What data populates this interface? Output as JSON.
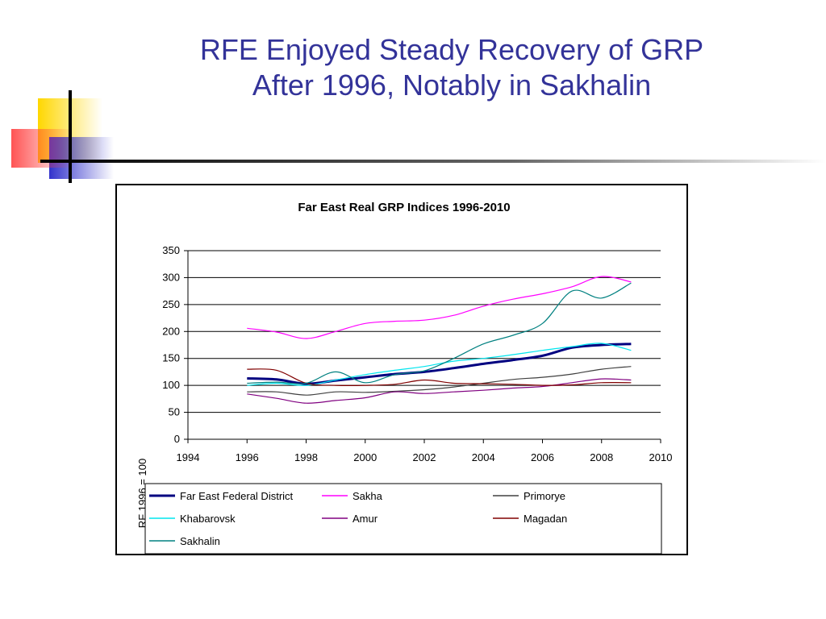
{
  "slide": {
    "title_line1": "RFE Enjoyed Steady Recovery of GRP",
    "title_line2": "After 1996, Notably in Sakhalin"
  },
  "colors": {
    "title": "#333399",
    "deco_yellow": "#FFD700",
    "deco_red": "#FF5050",
    "deco_blue": "#3333CC",
    "deco_line": "#000000"
  },
  "chart_data": {
    "type": "line",
    "title": "Far East Real GRP Indices 1996-2010",
    "xlabel": "",
    "ylabel": "RF 1996 = 100",
    "xlim": [
      1994,
      2010
    ],
    "ylim": [
      0,
      350
    ],
    "x_ticks": [
      "1994",
      "1996",
      "1998",
      "2000",
      "2002",
      "2004",
      "2006",
      "2008",
      "2010"
    ],
    "y_ticks": [
      "0",
      "50",
      "100",
      "150",
      "200",
      "250",
      "300",
      "350"
    ],
    "grid": "horizontal",
    "legend_position": "bottom",
    "series": [
      {
        "name": "Far East Federal District",
        "color": "#000080",
        "thick": true,
        "x": [
          1996,
          1997,
          1998,
          1999,
          2000,
          2001,
          2002,
          2003,
          2004,
          2005,
          2006,
          2007,
          2008,
          2009
        ],
        "y": [
          113,
          111,
          103,
          109,
          115,
          121,
          125,
          132,
          140,
          147,
          155,
          170,
          175,
          177
        ]
      },
      {
        "name": "Sakha",
        "color": "#FF00FF",
        "x": [
          1996,
          1997,
          1998,
          1999,
          2000,
          2001,
          2002,
          2003,
          2004,
          2005,
          2006,
          2007,
          2008,
          2009
        ],
        "y": [
          206,
          199,
          187,
          200,
          215,
          219,
          221,
          230,
          247,
          260,
          270,
          283,
          302,
          292
        ]
      },
      {
        "name": "Primorye",
        "color": "#404040",
        "x": [
          1996,
          1997,
          1998,
          1999,
          2000,
          2001,
          2002,
          2003,
          2004,
          2005,
          2006,
          2007,
          2008,
          2009
        ],
        "y": [
          88,
          88,
          82,
          88,
          87,
          89,
          92,
          97,
          104,
          111,
          115,
          121,
          130,
          135
        ]
      },
      {
        "name": "Khabarovsk",
        "color": "#00E5EE",
        "x": [
          1996,
          1997,
          1998,
          1999,
          2000,
          2001,
          2002,
          2003,
          2004,
          2005,
          2006,
          2007,
          2008,
          2009
        ],
        "y": [
          100,
          104,
          100,
          110,
          120,
          128,
          135,
          145,
          150,
          157,
          165,
          172,
          178,
          165
        ]
      },
      {
        "name": "Amur",
        "color": "#800080",
        "x": [
          1996,
          1997,
          1998,
          1999,
          2000,
          2001,
          2002,
          2003,
          2004,
          2005,
          2006,
          2007,
          2008,
          2009
        ],
        "y": [
          84,
          76,
          67,
          72,
          77,
          88,
          85,
          88,
          91,
          95,
          98,
          105,
          112,
          110
        ]
      },
      {
        "name": "Magadan",
        "color": "#800000",
        "x": [
          1996,
          1997,
          1998,
          1999,
          2000,
          2001,
          2002,
          2003,
          2004,
          2005,
          2006,
          2007,
          2008,
          2009
        ],
        "y": [
          130,
          128,
          104,
          100,
          100,
          102,
          110,
          104,
          103,
          102,
          100,
          101,
          105,
          105
        ]
      },
      {
        "name": "Sakhalin",
        "color": "#008080",
        "x": [
          1996,
          1997,
          1998,
          1999,
          2000,
          2001,
          2002,
          2003,
          2004,
          2005,
          2006,
          2007,
          2008,
          2009
        ],
        "y": [
          104,
          106,
          104,
          125,
          105,
          120,
          127,
          150,
          177,
          193,
          215,
          275,
          262,
          290
        ]
      }
    ]
  }
}
